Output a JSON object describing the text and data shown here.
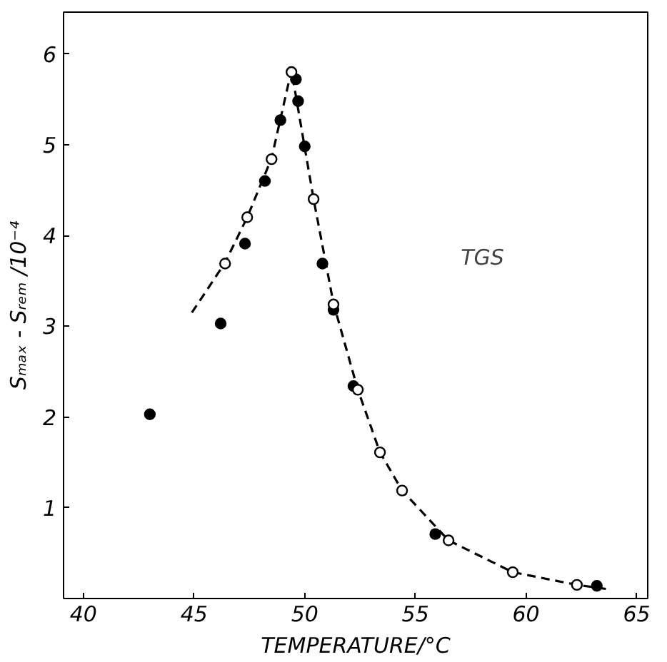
{
  "chart_data": {
    "type": "scatter",
    "xlabel": "TEMPERATURE/°C",
    "ylabel": "Sₘₐₓ - Sᵣₑₘ /10⁻⁴",
    "xlim": [
      39.1,
      65.5
    ],
    "ylim": [
      0,
      6.46
    ],
    "xticks": [
      40,
      45,
      50,
      55,
      60,
      65
    ],
    "yticks": [
      1,
      2,
      3,
      4,
      5,
      6
    ],
    "grid": false,
    "marker": "circle",
    "annotations": [
      "TGS"
    ],
    "series": [
      {
        "type": "line",
        "line_style": "dashed",
        "marker": "none",
        "color": "#000000",
        "x": [
          44.9,
          46.4,
          47.4,
          48.5,
          49.4,
          50.4,
          51.3,
          52.4,
          53.4,
          54.4,
          56.5,
          59.4,
          62.3,
          63.8
        ],
        "values": [
          3.15,
          3.7,
          4.2,
          4.85,
          5.82,
          4.4,
          3.25,
          2.3,
          1.61,
          1.19,
          0.64,
          0.29,
          0.15,
          0.1
        ]
      },
      {
        "color": "#000000",
        "x": [
          43.0,
          46.2,
          47.3,
          48.2,
          48.9,
          49.6,
          49.7,
          50.0,
          50.8,
          51.3,
          52.2,
          55.9,
          63.2
        ],
        "values": [
          2.03,
          3.03,
          3.91,
          4.6,
          5.27,
          5.72,
          5.48,
          4.98,
          3.69,
          3.18,
          2.34,
          0.71,
          0.14
        ]
      },
      {
        "color": "#ffffff",
        "x": [
          46.4,
          47.4,
          48.5,
          49.4,
          50.4,
          51.3,
          52.4,
          53.4,
          54.4,
          56.5,
          59.4,
          62.3
        ],
        "values": [
          3.69,
          4.2,
          4.84,
          5.8,
          4.4,
          3.24,
          2.3,
          1.61,
          1.19,
          0.64,
          0.29,
          0.15
        ]
      }
    ]
  }
}
